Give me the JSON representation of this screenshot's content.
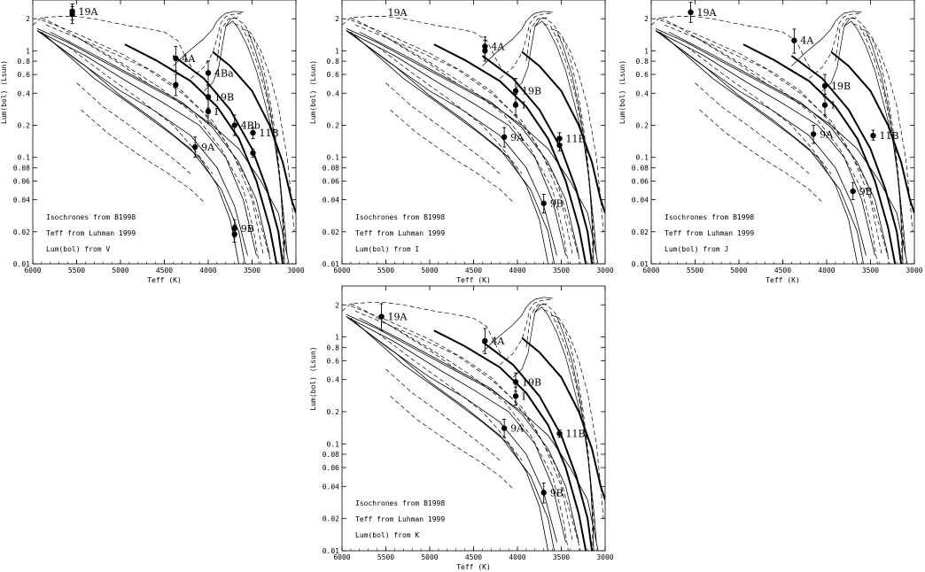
{
  "figure": {
    "colors": {
      "ink": "#000000",
      "background": "#ffffff"
    }
  },
  "chart_data": [
    {
      "type": "scatter",
      "xlabel": "Teff (K)",
      "ylabel": "Lum(bol) (Lsun)",
      "xlim": [
        6000,
        3000
      ],
      "x_reversed": true,
      "ylim": [
        0.01,
        3
      ],
      "y_scale": "log",
      "x_ticks": [
        6000,
        5500,
        5000,
        4500,
        4000,
        3500,
        3000
      ],
      "y_ticks": [
        0.01,
        0.02,
        0.04,
        0.06,
        0.08,
        0.1,
        0.2,
        0.4,
        0.6,
        0.8,
        1,
        2
      ],
      "notes": [
        "Isochrones from B1998",
        "Teff from Luhman 1999",
        "Lum(bol) from V"
      ],
      "points": [
        {
          "label": "19A",
          "teff": 5550,
          "lum": 2.35,
          "err": [
            1.95,
            2.75
          ]
        },
        {
          "label": "",
          "teff": 5550,
          "lum": 2.2,
          "err": [
            1.8,
            2.6
          ]
        },
        {
          "label": "4A",
          "teff": 4370,
          "lum": 0.85,
          "err": [
            0.65,
            1.1
          ]
        },
        {
          "label": "",
          "teff": 4370,
          "lum": 0.48,
          "err": [
            0.38,
            0.6
          ]
        },
        {
          "label": "4Ba",
          "teff": 4000,
          "lum": 0.62,
          "err": [
            0.48,
            0.8
          ]
        },
        {
          "label": "19B",
          "teff": 4000,
          "lum": 0.37,
          "err": [
            0.29,
            0.47
          ]
        },
        {
          "label": "I",
          "teff": 4000,
          "lum": 0.27,
          "err": [
            0.21,
            0.35
          ]
        },
        {
          "label": "4Bb",
          "teff": 3700,
          "lum": 0.2,
          "err": [
            0.16,
            0.25
          ]
        },
        {
          "label": "11B",
          "teff": 3490,
          "lum": 0.17,
          "err": [
            0.15,
            0.19
          ]
        },
        {
          "label": "",
          "teff": 3490,
          "lum": 0.11,
          "err": [
            0.1,
            0.12
          ]
        },
        {
          "label": "9A",
          "teff": 4150,
          "lum": 0.125,
          "err": [
            0.1,
            0.155
          ]
        },
        {
          "label": "9B",
          "teff": 3700,
          "lum": 0.0215,
          "err": [
            0.018,
            0.026
          ]
        },
        {
          "label": "",
          "teff": 3700,
          "lum": 0.019,
          "err": [
            0.016,
            0.023
          ]
        }
      ]
    },
    {
      "type": "scatter",
      "xlabel": "Teff (K)",
      "ylabel": "Lum(bol) (Lsun)",
      "xlim": [
        6000,
        3000
      ],
      "x_reversed": true,
      "ylim": [
        0.01,
        3
      ],
      "y_scale": "log",
      "x_ticks": [
        6000,
        5500,
        5000,
        4500,
        4000,
        3500,
        3000
      ],
      "y_ticks": [
        0.01,
        0.02,
        0.04,
        0.06,
        0.08,
        0.1,
        0.2,
        0.4,
        0.6,
        0.8,
        1,
        2
      ],
      "notes": [
        "Isochrones from B1998",
        "Teff from Luhman 1999",
        "Lum(bol) from I"
      ],
      "points": [
        {
          "label": "19A",
          "teff": 5550,
          "lum": 2.3,
          "err": [
            1.9,
            2.7
          ],
          "label_only": true
        },
        {
          "label": "4A",
          "teff": 4370,
          "lum": 1.1,
          "err": [
            0.85,
            1.35
          ]
        },
        {
          "label": "",
          "teff": 4370,
          "lum": 1.0,
          "err": [
            0.8,
            1.25
          ]
        },
        {
          "label": "19B",
          "teff": 4020,
          "lum": 0.42,
          "err": [
            0.33,
            0.55
          ]
        },
        {
          "label": "I",
          "teff": 4020,
          "lum": 0.31,
          "err": [
            0.25,
            0.39
          ]
        },
        {
          "label": "9A",
          "teff": 4150,
          "lum": 0.155,
          "err": [
            0.125,
            0.19
          ]
        },
        {
          "label": "11B",
          "teff": 3520,
          "lum": 0.15,
          "err": [
            0.13,
            0.17
          ]
        },
        {
          "label": "",
          "teff": 3520,
          "lum": 0.13,
          "err": [
            0.115,
            0.145
          ]
        },
        {
          "label": "9B",
          "teff": 3700,
          "lum": 0.037,
          "err": [
            0.03,
            0.045
          ]
        }
      ]
    },
    {
      "type": "scatter",
      "xlabel": "Teff (K)",
      "ylabel": "Lum(bol) (Lsun)",
      "xlim": [
        6000,
        3000
      ],
      "x_reversed": true,
      "ylim": [
        0.01,
        3
      ],
      "y_scale": "log",
      "x_ticks": [
        6000,
        5500,
        5000,
        4500,
        4000,
        3500,
        3000
      ],
      "y_ticks": [
        0.01,
        0.02,
        0.04,
        0.06,
        0.08,
        0.1,
        0.2,
        0.4,
        0.6,
        0.8,
        1,
        2
      ],
      "notes": [
        "Isochrones from B1998",
        "Teff from Luhman 1999",
        "Lum(bol) from J"
      ],
      "points": [
        {
          "label": "19A",
          "teff": 5550,
          "lum": 2.3,
          "err": [
            1.85,
            2.85
          ]
        },
        {
          "label": "4A",
          "teff": 4370,
          "lum": 1.25,
          "err": [
            0.95,
            1.6
          ]
        },
        {
          "label": "19B",
          "teff": 4020,
          "lum": 0.47,
          "err": [
            0.37,
            0.6
          ]
        },
        {
          "label": "I",
          "teff": 4020,
          "lum": 0.31,
          "err": [
            0.25,
            0.39
          ]
        },
        {
          "label": "9A",
          "teff": 4150,
          "lum": 0.165,
          "err": [
            0.135,
            0.2
          ]
        },
        {
          "label": "11B",
          "teff": 3470,
          "lum": 0.16,
          "err": [
            0.145,
            0.18
          ]
        },
        {
          "label": "9B",
          "teff": 3700,
          "lum": 0.048,
          "err": [
            0.04,
            0.058
          ]
        }
      ]
    },
    {
      "type": "scatter",
      "xlabel": "Teff (K)",
      "ylabel": "Lum(bol) (Lsun)",
      "xlim": [
        6000,
        3000
      ],
      "x_reversed": true,
      "ylim": [
        0.01,
        3
      ],
      "y_scale": "log",
      "x_ticks": [
        6000,
        5500,
        5000,
        4500,
        4000,
        3500,
        3000
      ],
      "y_ticks": [
        0.01,
        0.02,
        0.04,
        0.06,
        0.08,
        0.1,
        0.2,
        0.4,
        0.6,
        0.8,
        1,
        2
      ],
      "notes": [
        "Isochrones from B1998",
        "Teff from Luhman 1999",
        "Lum(bol) from K"
      ],
      "points": [
        {
          "label": "19A",
          "teff": 5550,
          "lum": 1.55,
          "err": [
            1.15,
            2.05
          ]
        },
        {
          "label": "4A",
          "teff": 4370,
          "lum": 0.92,
          "err": [
            0.7,
            1.2
          ]
        },
        {
          "label": "19B",
          "teff": 4020,
          "lum": 0.38,
          "err": [
            0.31,
            0.46
          ]
        },
        {
          "label": "I",
          "teff": 4020,
          "lum": 0.28,
          "err": [
            0.23,
            0.34
          ]
        },
        {
          "label": "9A",
          "teff": 4150,
          "lum": 0.14,
          "err": [
            0.115,
            0.17
          ]
        },
        {
          "label": "11B",
          "teff": 3520,
          "lum": 0.125,
          "err": [
            0.115,
            0.135
          ]
        },
        {
          "label": "9B",
          "teff": 3700,
          "lum": 0.035,
          "err": [
            0.028,
            0.043
          ]
        }
      ]
    }
  ]
}
